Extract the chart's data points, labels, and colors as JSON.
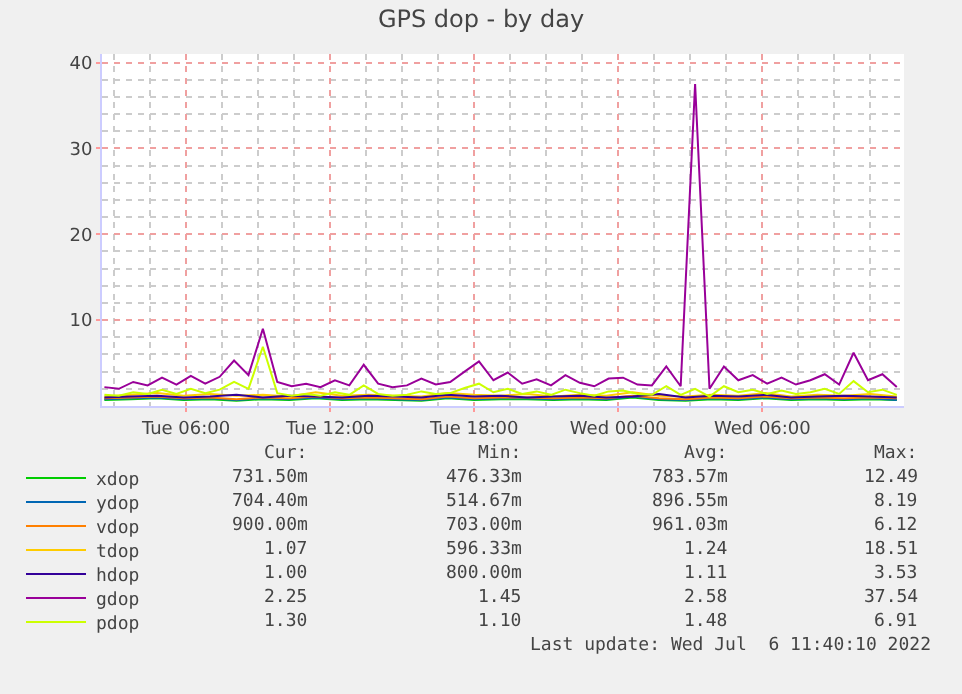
{
  "chart_data": {
    "type": "line",
    "title": "GPS dop - by day",
    "x": [
      "2022-07-05T02:36",
      "2022-07-05T03:12",
      "2022-07-05T03:48",
      "2022-07-05T04:24",
      "2022-07-05T05:00",
      "2022-07-05T05:36",
      "2022-07-05T06:12",
      "2022-07-05T06:48",
      "2022-07-05T07:24",
      "2022-07-05T08:00",
      "2022-07-05T08:36",
      "2022-07-05T09:12",
      "2022-07-05T09:48",
      "2022-07-05T10:24",
      "2022-07-05T11:00",
      "2022-07-05T11:36",
      "2022-07-05T12:12",
      "2022-07-05T12:48",
      "2022-07-05T13:24",
      "2022-07-05T14:00",
      "2022-07-05T14:36",
      "2022-07-05T15:12",
      "2022-07-05T15:48",
      "2022-07-05T16:24",
      "2022-07-05T17:00",
      "2022-07-05T17:36",
      "2022-07-05T18:12",
      "2022-07-05T18:48",
      "2022-07-05T19:24",
      "2022-07-05T20:00",
      "2022-07-05T20:36",
      "2022-07-05T21:12",
      "2022-07-05T21:48",
      "2022-07-05T22:24",
      "2022-07-05T23:00",
      "2022-07-05T23:36",
      "2022-07-06T00:12",
      "2022-07-06T00:48",
      "2022-07-06T01:24",
      "2022-07-06T02:00",
      "2022-07-06T02:36",
      "2022-07-06T03:12",
      "2022-07-06T03:48",
      "2022-07-06T04:24",
      "2022-07-06T05:00",
      "2022-07-06T05:36",
      "2022-07-06T06:12",
      "2022-07-06T06:48",
      "2022-07-06T07:24",
      "2022-07-06T08:00",
      "2022-07-06T08:36",
      "2022-07-06T09:12",
      "2022-07-06T09:48",
      "2022-07-06T10:24",
      "2022-07-06T11:00",
      "2022-07-06T11:36"
    ],
    "series": [
      {
        "name": "xdop",
        "color": "#00cc00",
        "x": [
          "2022-07-05T02:36",
          "2022-07-05T03:42",
          "2022-07-05T04:48",
          "2022-07-05T05:54",
          "2022-07-05T07:00",
          "2022-07-05T08:06",
          "2022-07-05T09:12",
          "2022-07-05T10:18",
          "2022-07-05T11:24",
          "2022-07-05T12:30",
          "2022-07-05T13:36",
          "2022-07-05T14:42",
          "2022-07-05T15:48",
          "2022-07-05T16:54",
          "2022-07-05T18:00",
          "2022-07-05T19:06",
          "2022-07-05T20:12",
          "2022-07-05T21:18",
          "2022-07-05T22:24",
          "2022-07-05T23:30",
          "2022-07-06T00:36",
          "2022-07-06T01:42",
          "2022-07-06T02:48",
          "2022-07-06T03:54",
          "2022-07-06T05:00",
          "2022-07-06T06:06",
          "2022-07-06T07:12",
          "2022-07-06T08:18",
          "2022-07-06T09:24",
          "2022-07-06T10:30",
          "2022-07-06T11:36"
        ],
        "values": [
          0.7,
          0.8,
          0.9,
          0.7,
          0.8,
          0.6,
          0.8,
          0.7,
          0.9,
          0.7,
          0.8,
          0.7,
          0.6,
          0.9,
          0.7,
          0.8,
          0.8,
          0.7,
          0.8,
          0.7,
          1.0,
          0.7,
          0.6,
          0.8,
          0.7,
          0.9,
          0.7,
          0.8,
          0.7,
          0.8,
          0.7
        ]
      },
      {
        "name": "ydop",
        "color": "#0066b3",
        "x": [
          "2022-07-05T02:36",
          "2022-07-05T03:42",
          "2022-07-05T04:48",
          "2022-07-05T05:54",
          "2022-07-05T07:00",
          "2022-07-05T08:06",
          "2022-07-05T09:12",
          "2022-07-05T10:18",
          "2022-07-05T11:24",
          "2022-07-05T12:30",
          "2022-07-05T13:36",
          "2022-07-05T14:42",
          "2022-07-05T15:48",
          "2022-07-05T16:54",
          "2022-07-05T18:00",
          "2022-07-05T19:06",
          "2022-07-05T20:12",
          "2022-07-05T21:18",
          "2022-07-05T22:24",
          "2022-07-05T23:30",
          "2022-07-06T00:36",
          "2022-07-06T01:42",
          "2022-07-06T02:48",
          "2022-07-06T03:54",
          "2022-07-06T05:00",
          "2022-07-06T06:06",
          "2022-07-06T07:12",
          "2022-07-06T08:18",
          "2022-07-06T09:24",
          "2022-07-06T10:30",
          "2022-07-06T11:36"
        ],
        "values": [
          0.8,
          0.9,
          1.0,
          0.8,
          0.9,
          0.7,
          0.9,
          0.8,
          1.0,
          0.8,
          0.9,
          0.8,
          0.7,
          1.0,
          0.8,
          0.9,
          0.9,
          0.8,
          0.9,
          0.8,
          1.1,
          0.8,
          0.7,
          0.9,
          0.8,
          1.0,
          0.8,
          0.9,
          0.8,
          0.9,
          0.7
        ]
      },
      {
        "name": "vdop",
        "color": "#ff8000",
        "x": [
          "2022-07-05T02:36",
          "2022-07-05T03:42",
          "2022-07-05T04:48",
          "2022-07-05T05:54",
          "2022-07-05T07:00",
          "2022-07-05T08:06",
          "2022-07-05T09:12",
          "2022-07-05T10:18",
          "2022-07-05T11:24",
          "2022-07-05T12:30",
          "2022-07-05T13:36",
          "2022-07-05T14:42",
          "2022-07-05T15:48",
          "2022-07-05T16:54",
          "2022-07-05T18:00",
          "2022-07-05T19:06",
          "2022-07-05T20:12",
          "2022-07-05T21:18",
          "2022-07-05T22:24",
          "2022-07-05T23:30",
          "2022-07-06T00:36",
          "2022-07-06T01:42",
          "2022-07-06T02:48",
          "2022-07-06T03:54",
          "2022-07-06T05:00",
          "2022-07-06T06:06",
          "2022-07-06T07:12",
          "2022-07-06T08:18",
          "2022-07-06T09:24",
          "2022-07-06T10:30",
          "2022-07-06T11:36"
        ],
        "values": [
          0.9,
          1.0,
          1.1,
          0.9,
          1.0,
          0.8,
          1.0,
          0.9,
          1.1,
          0.9,
          1.0,
          0.9,
          0.8,
          1.1,
          0.9,
          1.0,
          1.0,
          0.9,
          1.0,
          0.9,
          1.2,
          0.9,
          0.8,
          1.0,
          0.9,
          1.1,
          0.9,
          1.0,
          0.9,
          1.0,
          0.9
        ]
      },
      {
        "name": "tdop",
        "color": "#ffcc00",
        "x": [
          "2022-07-05T02:36",
          "2022-07-05T03:42",
          "2022-07-05T04:48",
          "2022-07-05T05:54",
          "2022-07-05T07:00",
          "2022-07-05T08:06",
          "2022-07-05T09:12",
          "2022-07-05T10:18",
          "2022-07-05T11:24",
          "2022-07-05T12:30",
          "2022-07-05T13:36",
          "2022-07-05T14:42",
          "2022-07-05T15:48",
          "2022-07-05T16:54",
          "2022-07-05T18:00",
          "2022-07-05T19:06",
          "2022-07-05T20:12",
          "2022-07-05T21:18",
          "2022-07-05T22:24",
          "2022-07-05T23:30",
          "2022-07-06T00:36",
          "2022-07-06T01:42",
          "2022-07-06T02:48",
          "2022-07-06T03:54",
          "2022-07-06T05:00",
          "2022-07-06T06:06",
          "2022-07-06T07:12",
          "2022-07-06T08:18",
          "2022-07-06T09:24",
          "2022-07-06T10:30",
          "2022-07-06T11:36"
        ],
        "values": [
          1.1,
          1.3,
          1.5,
          1.2,
          1.4,
          1.2,
          1.3,
          1.1,
          1.6,
          1.2,
          1.3,
          1.2,
          1.1,
          1.5,
          1.3,
          1.2,
          1.4,
          1.1,
          1.3,
          1.2,
          1.6,
          1.2,
          1.1,
          1.3,
          1.2,
          1.5,
          1.1,
          1.3,
          1.2,
          1.4,
          1.1
        ]
      },
      {
        "name": "hdop",
        "color": "#330099",
        "x": [
          "2022-07-05T02:36",
          "2022-07-05T03:42",
          "2022-07-05T04:48",
          "2022-07-05T05:54",
          "2022-07-05T07:00",
          "2022-07-05T08:06",
          "2022-07-05T09:12",
          "2022-07-05T10:18",
          "2022-07-05T11:24",
          "2022-07-05T12:30",
          "2022-07-05T13:36",
          "2022-07-05T14:42",
          "2022-07-05T15:48",
          "2022-07-05T16:54",
          "2022-07-05T18:00",
          "2022-07-05T19:06",
          "2022-07-05T20:12",
          "2022-07-05T21:18",
          "2022-07-05T22:24",
          "2022-07-05T23:30",
          "2022-07-06T00:36",
          "2022-07-06T01:42",
          "2022-07-06T02:48",
          "2022-07-06T03:54",
          "2022-07-06T05:00",
          "2022-07-06T06:06",
          "2022-07-06T07:12",
          "2022-07-06T08:18",
          "2022-07-06T09:24",
          "2022-07-06T10:30",
          "2022-07-06T11:36"
        ],
        "values": [
          1.0,
          1.1,
          1.2,
          1.0,
          1.1,
          1.3,
          1.0,
          1.2,
          1.1,
          1.0,
          1.2,
          1.1,
          1.0,
          1.3,
          1.1,
          1.2,
          1.0,
          1.1,
          1.2,
          1.0,
          1.1,
          1.4,
          1.0,
          1.2,
          1.1,
          1.3,
          1.0,
          1.1,
          1.2,
          1.1,
          1.0
        ]
      },
      {
        "name": "gdop",
        "color": "#990099",
        "values": [
          2.2,
          2.0,
          2.8,
          2.4,
          3.3,
          2.5,
          3.5,
          2.6,
          3.4,
          5.3,
          3.6,
          9.0,
          2.8,
          2.3,
          2.6,
          2.2,
          3.0,
          2.4,
          4.8,
          2.6,
          2.2,
          2.4,
          3.2,
          2.5,
          2.8,
          4.0,
          5.2,
          3.0,
          3.9,
          2.6,
          3.1,
          2.4,
          3.6,
          2.7,
          2.3,
          3.2,
          3.3,
          2.5,
          2.4,
          4.6,
          2.3,
          37.5,
          2.0,
          4.6,
          3.0,
          3.6,
          2.6,
          3.3,
          2.5,
          3.0,
          3.7,
          2.5,
          6.2,
          3.0,
          3.7,
          2.2
        ]
      },
      {
        "name": "pdop",
        "color": "#ccff00",
        "values": [
          1.3,
          1.2,
          1.6,
          1.4,
          1.9,
          1.4,
          2.0,
          1.5,
          1.9,
          2.8,
          2.0,
          6.9,
          1.5,
          1.2,
          1.4,
          1.2,
          1.6,
          1.3,
          2.4,
          1.4,
          1.2,
          1.3,
          1.7,
          1.4,
          1.5,
          2.1,
          2.6,
          1.6,
          2.0,
          1.4,
          1.7,
          1.3,
          1.9,
          1.5,
          1.2,
          1.7,
          1.8,
          1.4,
          1.3,
          2.3,
          1.3,
          2.0,
          1.1,
          2.3,
          1.6,
          1.9,
          1.4,
          1.8,
          1.4,
          1.6,
          2.0,
          1.4,
          2.9,
          1.6,
          1.9,
          1.3
        ]
      }
    ],
    "xlim": [
      "2022-07-05T02:30",
      "2022-07-06T11:54"
    ],
    "xticks": [
      {
        "value": "2022-07-05T06:00",
        "label": "Tue 06:00"
      },
      {
        "value": "2022-07-05T12:00",
        "label": "Tue 12:00"
      },
      {
        "value": "2022-07-05T18:00",
        "label": "Tue 18:00"
      },
      {
        "value": "2022-07-06T00:00",
        "label": "Wed 00:00"
      },
      {
        "value": "2022-07-06T06:00",
        "label": "Wed 06:00"
      }
    ],
    "ylim": [
      0,
      41
    ],
    "yticks": [
      10,
      20,
      30,
      40
    ],
    "grid": true,
    "legend": "bottom left",
    "marker": "none",
    "line_style": "solid",
    "annotations": [
      "Cur:",
      "Min:",
      "Avg:",
      "Max:",
      "731.50m",
      "476.33m",
      "783.57m",
      "12.49",
      "704.40m",
      "514.67m",
      "896.55m",
      "8.19",
      "900.00m",
      "703.00m",
      "961.03m",
      "6.12",
      "1.07",
      "596.33m",
      "1.24",
      "18.51",
      "1.00",
      "800.00m",
      "1.11",
      "3.53",
      "2.25",
      "1.45",
      "2.58",
      "37.54",
      "1.30",
      "1.10",
      "1.48",
      "6.91",
      "Last update: Wed Jul  6 11:40:10 2022"
    ]
  }
}
